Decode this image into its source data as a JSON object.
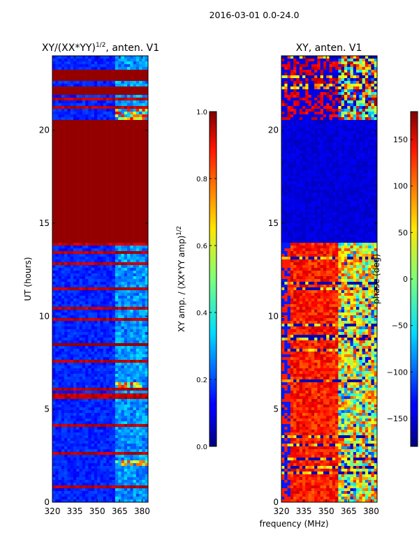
{
  "suptitle": "2016-03-01 0.0-24.0",
  "chart_data": [
    {
      "type": "heatmap",
      "title_main": "XY/(XX*YY)",
      "title_exp": "1/2",
      "title_tail": ", anten. V1",
      "ylabel": "UT (hours)",
      "xlabel": "",
      "xlim": [
        320,
        384
      ],
      "ylim": [
        0,
        24
      ],
      "xticks": [
        320,
        335,
        350,
        365,
        380
      ],
      "yticks": [
        0,
        5,
        10,
        15,
        20
      ],
      "colorbar": {
        "label_main": "XY amp. / (XX*YY amp)",
        "label_exp": "1/2",
        "range": [
          0.0,
          1.0
        ],
        "ticks": [
          "0.0",
          "0.2",
          "0.4",
          "0.6",
          "0.8",
          "1.0"
        ],
        "colormap": "jet"
      },
      "saturated_bands_ut": [
        [
          14.0,
          20.5
        ],
        [
          21.9,
          22.4
        ],
        [
          22.6,
          23.2
        ],
        [
          8.4,
          8.6
        ]
      ],
      "bright_bands_ut": [
        [
          20.5,
          21.3
        ],
        [
          6.1,
          6.5
        ],
        [
          2.0,
          2.3
        ]
      ]
    },
    {
      "type": "heatmap",
      "title": "XY, anten. V1",
      "ylabel": "",
      "xlabel": "frequency (MHz)",
      "xlim": [
        320,
        384
      ],
      "ylim": [
        0,
        24
      ],
      "xticks": [
        320,
        335,
        350,
        365,
        380
      ],
      "yticks": [
        0,
        5,
        10,
        15,
        20
      ],
      "colorbar": {
        "label": "phase (deg)",
        "range": [
          -180,
          180
        ],
        "ticks": [
          "−150",
          "−100",
          "−50",
          "0",
          "50",
          "100",
          "150"
        ],
        "tick_values": [
          -150,
          -100,
          -50,
          0,
          50,
          100,
          150
        ],
        "colormap": "jet"
      },
      "low_phase_band_ut": [
        14.0,
        20.5
      ]
    }
  ]
}
